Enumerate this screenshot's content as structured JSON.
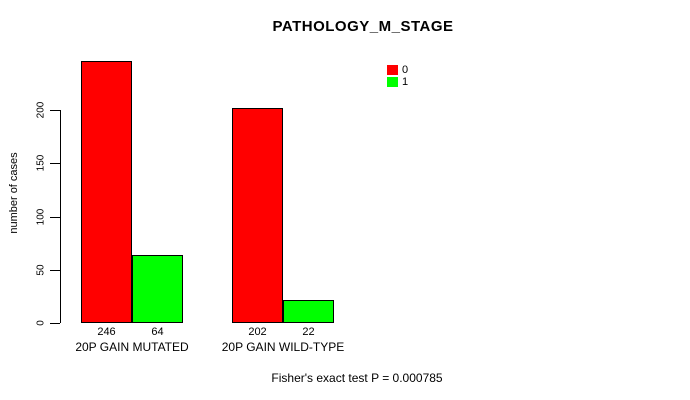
{
  "chart_data": {
    "type": "bar",
    "title": "PATHOLOGY_M_STAGE",
    "ylabel": "number of cases",
    "xlabel": "",
    "categories": [
      "20P GAIN MUTATED",
      "20P GAIN WILD-TYPE"
    ],
    "series": [
      {
        "name": "0",
        "color": "#ff0000",
        "values": [
          246,
          202
        ]
      },
      {
        "name": "1",
        "color": "#00ff00",
        "values": [
          64,
          22
        ]
      }
    ],
    "bar_value_labels": [
      [
        "246",
        "202"
      ],
      [
        "64",
        "22"
      ]
    ],
    "yticks": [
      0,
      50,
      100,
      150,
      200
    ],
    "ylim": [
      0,
      250
    ],
    "grid": false,
    "legend_position": "top-right",
    "footnote": "Fisher's exact test P = 0.000785",
    "colors": {
      "bar_border": "#000000",
      "axis": "#000000",
      "text": "#000000",
      "background": "#ffffff"
    }
  }
}
